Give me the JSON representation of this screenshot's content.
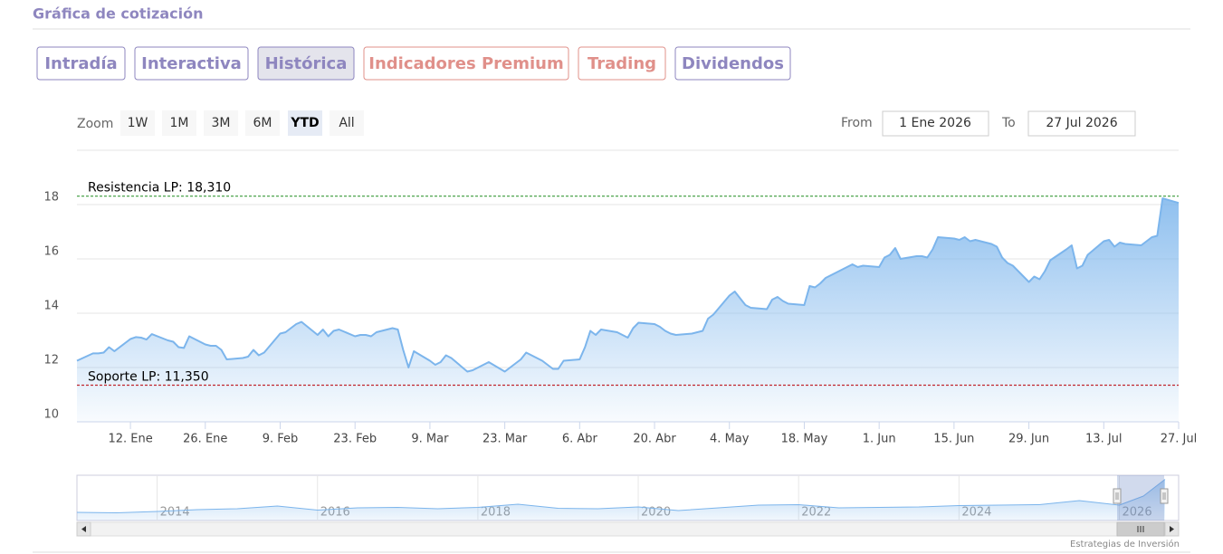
{
  "header": {
    "title": "Gráfica de cotización"
  },
  "tabs": [
    {
      "label": "Intradía",
      "color": "#8e86bf"
    },
    {
      "label": "Interactiva",
      "color": "#8e86bf"
    },
    {
      "label": "Histórica",
      "color": "#8e86bf"
    },
    {
      "label": "Indicadores Premium",
      "color": "#e0908a"
    },
    {
      "label": "Trading",
      "color": "#e0908a"
    },
    {
      "label": "Dividendos",
      "color": "#8e86bf"
    }
  ],
  "active_tab": 2,
  "range_selector": {
    "zoom_label": "Zoom",
    "buttons": [
      "1W",
      "1M",
      "3M",
      "6M",
      "YTD",
      "All"
    ],
    "selected": 4,
    "from_label": "From",
    "from": "1 Ene 2026",
    "to_label": "To",
    "to": "27 Jul 2026"
  },
  "chart_data": [
    {
      "type": "area",
      "color": "#7cb5ec",
      "x": [
        "2026-01-02",
        "2026-01-05",
        "2026-01-06",
        "2026-01-07",
        "2026-01-08",
        "2026-01-09",
        "2026-01-12",
        "2026-01-13",
        "2026-01-14",
        "2026-01-15",
        "2026-01-16",
        "2026-01-19",
        "2026-01-20",
        "2026-01-21",
        "2026-01-22",
        "2026-01-23",
        "2026-01-26",
        "2026-01-27",
        "2026-01-28",
        "2026-01-29",
        "2026-01-30",
        "2026-02-02",
        "2026-02-03",
        "2026-02-04",
        "2026-02-05",
        "2026-02-06",
        "2026-02-09",
        "2026-02-10",
        "2026-02-11",
        "2026-02-12",
        "2026-02-13",
        "2026-02-16",
        "2026-02-17",
        "2026-02-18",
        "2026-02-19",
        "2026-02-20",
        "2026-02-23",
        "2026-02-24",
        "2026-02-25",
        "2026-02-26",
        "2026-02-27",
        "2026-03-02",
        "2026-03-03",
        "2026-03-04",
        "2026-03-05",
        "2026-03-06",
        "2026-03-09",
        "2026-03-10",
        "2026-03-11",
        "2026-03-12",
        "2026-03-13",
        "2026-03-16",
        "2026-03-17",
        "2026-03-18",
        "2026-03-19",
        "2026-03-20",
        "2026-03-23",
        "2026-03-24",
        "2026-03-25",
        "2026-03-26",
        "2026-03-27",
        "2026-03-30",
        "2026-03-31",
        "2026-04-01",
        "2026-04-02",
        "2026-04-03",
        "2026-04-06",
        "2026-04-07",
        "2026-04-08",
        "2026-04-09",
        "2026-04-10",
        "2026-04-13",
        "2026-04-14",
        "2026-04-15",
        "2026-04-16",
        "2026-04-17",
        "2026-04-20",
        "2026-04-21",
        "2026-04-22",
        "2026-04-23",
        "2026-04-24",
        "2026-04-27",
        "2026-04-28",
        "2026-04-29",
        "2026-04-30",
        "2026-05-01",
        "2026-05-04",
        "2026-05-05",
        "2026-05-06",
        "2026-05-07",
        "2026-05-08",
        "2026-05-11",
        "2026-05-12",
        "2026-05-13",
        "2026-05-14",
        "2026-05-15",
        "2026-05-18",
        "2026-05-19",
        "2026-05-20",
        "2026-05-21",
        "2026-05-22",
        "2026-05-25",
        "2026-05-26",
        "2026-05-27",
        "2026-05-28",
        "2026-05-29",
        "2026-06-01",
        "2026-06-02",
        "2026-06-03",
        "2026-06-04",
        "2026-06-05",
        "2026-06-08",
        "2026-06-09",
        "2026-06-10",
        "2026-06-11",
        "2026-06-12",
        "2026-06-15",
        "2026-06-16",
        "2026-06-17",
        "2026-06-18",
        "2026-06-19",
        "2026-06-22",
        "2026-06-23",
        "2026-06-24",
        "2026-06-25",
        "2026-06-26",
        "2026-06-29",
        "2026-06-30",
        "2026-07-01",
        "2026-07-02",
        "2026-07-03",
        "2026-07-06",
        "2026-07-07",
        "2026-07-08",
        "2026-07-09",
        "2026-07-10",
        "2026-07-13",
        "2026-07-14",
        "2026-07-15",
        "2026-07-16",
        "2026-07-17",
        "2026-07-20",
        "2026-07-21",
        "2026-07-22",
        "2026-07-23",
        "2026-07-24",
        "2026-07-27"
      ],
      "values": [
        12.25,
        12.52,
        12.52,
        12.55,
        12.75,
        12.6,
        13.05,
        13.12,
        13.1,
        13.03,
        13.23,
        13.0,
        12.95,
        12.75,
        12.72,
        13.15,
        12.85,
        12.8,
        12.8,
        12.65,
        12.3,
        12.35,
        12.4,
        12.65,
        12.45,
        12.55,
        13.25,
        13.3,
        13.45,
        13.6,
        13.68,
        13.2,
        13.4,
        13.15,
        13.35,
        13.4,
        13.15,
        13.2,
        13.2,
        13.15,
        13.3,
        13.45,
        13.4,
        12.65,
        12.0,
        12.6,
        12.25,
        12.1,
        12.2,
        12.45,
        12.35,
        11.85,
        11.9,
        12.0,
        12.1,
        12.2,
        11.85,
        12.0,
        12.15,
        12.3,
        12.55,
        12.25,
        12.1,
        11.95,
        11.95,
        12.25,
        12.3,
        12.75,
        13.35,
        13.2,
        13.4,
        13.3,
        13.2,
        13.1,
        13.45,
        13.65,
        13.6,
        13.5,
        13.35,
        13.25,
        13.2,
        13.25,
        13.3,
        13.35,
        13.8,
        13.95,
        14.65,
        14.8,
        14.55,
        14.3,
        14.2,
        14.15,
        14.5,
        14.6,
        14.45,
        14.35,
        14.3,
        15.0,
        14.95,
        15.1,
        15.3,
        15.6,
        15.7,
        15.8,
        15.7,
        15.75,
        15.7,
        16.05,
        16.15,
        16.4,
        16.0,
        16.1,
        16.1,
        16.05,
        16.35,
        16.8,
        16.75,
        16.7,
        16.8,
        16.65,
        16.7,
        16.55,
        16.45,
        16.05,
        15.85,
        15.75,
        15.15,
        15.35,
        15.25,
        15.55,
        15.95,
        16.35,
        16.5,
        15.65,
        15.75,
        16.15,
        16.65,
        16.7,
        16.45,
        16.6,
        16.55,
        16.5,
        16.65,
        16.8,
        16.85,
        18.23,
        18.06
      ],
      "xlim": [
        "2026-01-02",
        "2026-07-27"
      ],
      "xticks": [
        {
          "value": "2026-01-12",
          "label": "12. Ene"
        },
        {
          "value": "2026-01-26",
          "label": "26. Ene"
        },
        {
          "value": "2026-02-09",
          "label": "9. Feb"
        },
        {
          "value": "2026-02-23",
          "label": "23. Feb"
        },
        {
          "value": "2026-03-09",
          "label": "9. Mar"
        },
        {
          "value": "2026-03-23",
          "label": "23. Mar"
        },
        {
          "value": "2026-04-06",
          "label": "6. Abr"
        },
        {
          "value": "2026-04-20",
          "label": "20. Abr"
        },
        {
          "value": "2026-05-04",
          "label": "4. May"
        },
        {
          "value": "2026-05-18",
          "label": "18. May"
        },
        {
          "value": "2026-06-01",
          "label": "1. Jun"
        },
        {
          "value": "2026-06-15",
          "label": "15. Jun"
        },
        {
          "value": "2026-06-29",
          "label": "29. Jun"
        },
        {
          "value": "2026-07-13",
          "label": "13. Jul"
        },
        {
          "value": "2026-07-27",
          "label": "27. Jul"
        }
      ],
      "ylim": [
        10,
        20
      ],
      "yticks": [
        10,
        12,
        14,
        16,
        18
      ],
      "grid": true,
      "plot_lines": [
        {
          "value": 18.31,
          "label": "Resistencia LP: 18,310",
          "color": "#3a9a3a"
        },
        {
          "value": 11.35,
          "label": "Soporte LP: 11,350",
          "color": "#c0262d"
        }
      ]
    },
    {
      "type": "area",
      "color": "#7cb5ec",
      "x": [
        2013.0,
        2013.5,
        2014.0,
        2014.5,
        2015.0,
        2015.5,
        2016.0,
        2016.5,
        2017.0,
        2017.5,
        2018.0,
        2018.5,
        2019.0,
        2019.5,
        2020.0,
        2020.5,
        2021.0,
        2021.5,
        2022.0,
        2022.5,
        2023.0,
        2023.5,
        2024.0,
        2024.5,
        2025.0,
        2025.5,
        2026.0,
        2026.3,
        2026.57
      ],
      "values": [
        10.8,
        10.7,
        11.0,
        11.4,
        11.6,
        12.2,
        11.3,
        11.8,
        11.9,
        11.6,
        11.9,
        12.6,
        11.7,
        11.6,
        12.0,
        11.2,
        11.8,
        12.4,
        12.5,
        11.8,
        11.9,
        12.0,
        12.3,
        12.4,
        12.5,
        13.4,
        12.4,
        14.4,
        18.1
      ],
      "xlim": [
        2013,
        2026.57
      ],
      "xticks": [
        2014,
        2016,
        2018,
        2020,
        2022,
        2024,
        2026
      ],
      "ylim": [
        9,
        19
      ]
    }
  ],
  "footer": {
    "credit": "Estrategias de Inversión"
  }
}
